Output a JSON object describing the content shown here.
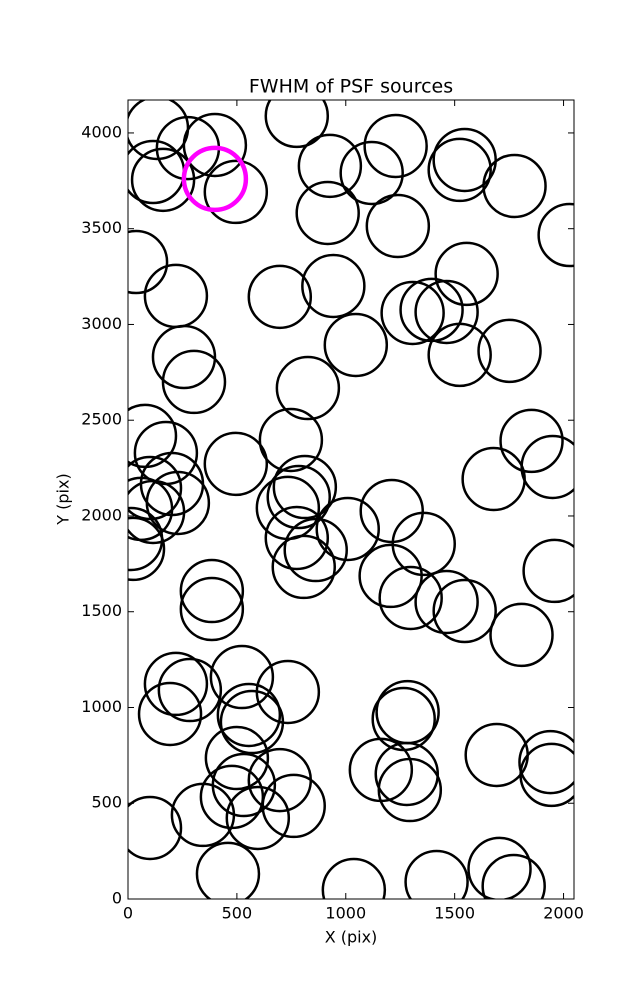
{
  "chart_data": {
    "type": "scatter",
    "title": "FWHM of PSF sources",
    "x_label": "X (pix)",
    "y_label": "Y (pix)",
    "xlim": [
      0,
      2048
    ],
    "ylim": [
      0,
      4172
    ],
    "xticks": [
      0,
      500,
      1000,
      1500,
      2000
    ],
    "yticks": [
      0,
      500,
      1000,
      1500,
      2000,
      2500,
      3000,
      3500,
      4000
    ],
    "series": [
      {
        "color": "#000000",
        "x": [
          133,
          275,
          399,
          115,
          161,
          495,
          775,
          927,
          917,
          1119,
          1229,
          1239,
          1546,
          1523,
          1775,
          2028,
          37,
          220,
          697,
          943,
          1555,
          1307,
          1394,
          1463,
          1523,
          1752,
          257,
          303,
          1046,
          826,
          78,
          174,
          748,
          1853,
          1950,
          1679,
          495,
          202,
          101,
          229,
          115,
          60,
          812,
          784,
          734,
          775,
          807,
          862,
          1009,
          1211,
          1358,
          1206,
          1298,
          1463,
          1546,
          1807,
          1959,
          23,
          14,
          385,
          385,
          220,
          284,
          193,
          523,
          734,
          555,
          569,
          500,
          532,
          477,
          697,
          761,
          596,
          344,
          101,
          459,
          1037,
          1417,
          1706,
          1771,
          1284,
          1266,
          1161,
          1280,
          1294,
          1693,
          1940,
          1945
        ],
        "values": [
          4026,
          3921,
          3937,
          3796,
          3755,
          3692,
          4089,
          3828,
          3582,
          3791,
          3932,
          3514,
          3859,
          3807,
          3723,
          3467,
          3326,
          3149,
          3144,
          3201,
          3264,
          3060,
          3076,
          3065,
          2841,
          2862,
          2830,
          2700,
          2893,
          2668,
          2418,
          2329,
          2397,
          2392,
          2256,
          2193,
          2272,
          2167,
          2146,
          2068,
          2021,
          2037,
          2151,
          2099,
          2042,
          1885,
          1734,
          1822,
          1932,
          2026,
          1854,
          1687,
          1572,
          1551,
          1504,
          1379,
          1713,
          1828,
          1880,
          1608,
          1514,
          1123,
          1091,
          966,
          1159,
          1081,
          961,
          924,
          736,
          595,
          533,
          621,
          486,
          423,
          439,
          371,
          131,
          47,
          89,
          157,
          68,
          976,
          940,
          674,
          653,
          569,
          752,
          715,
          648
        ]
      },
      {
        "color": "#ff00ff",
        "x": [
          399
        ],
        "values": [
          3760
        ]
      }
    ]
  }
}
